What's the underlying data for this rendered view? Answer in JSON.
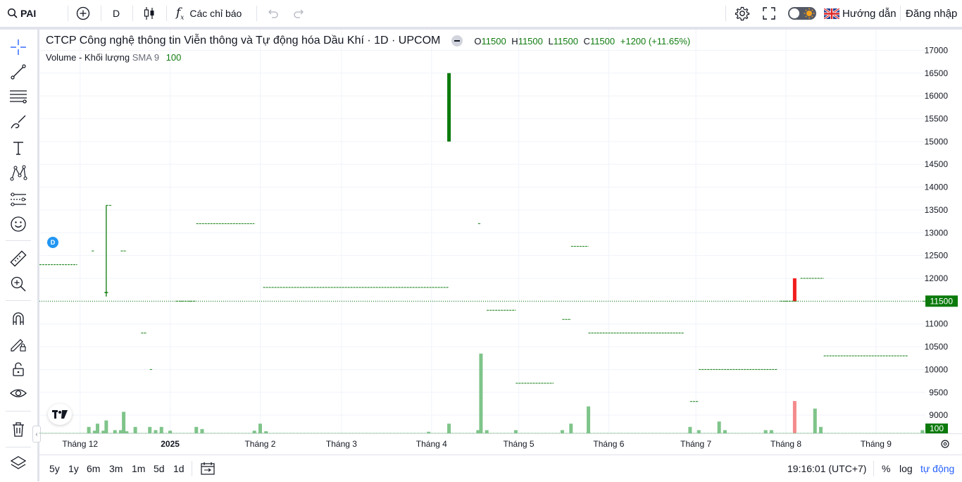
{
  "topbar": {
    "symbol": "PAI",
    "interval": "D",
    "indicators_label": "Các chỉ báo",
    "guide_label": "Hướng dẫn",
    "login_label": "Đăng nhập"
  },
  "legend": {
    "title": "CTCP Công nghệ thông tin Viễn thông và Tự động hóa Dầu Khí · 1D · UPCOM",
    "o_label": "O",
    "o_value": "11500",
    "h_label": "H",
    "h_value": "11500",
    "l_label": "L",
    "l_value": "11500",
    "c_label": "C",
    "c_value": "11500",
    "change": "+1200 (+11.65%)",
    "volume_label": "Volume - Khối lượng",
    "volume_sma_label": "SMA 9",
    "volume_value": "100"
  },
  "badge_label": "D",
  "bottombar": {
    "ranges": [
      "5y",
      "1y",
      "6m",
      "3m",
      "1m",
      "5d",
      "1d"
    ],
    "time": "19:16:01 (UTC+7)",
    "percent": "%",
    "log": "log",
    "auto": "tự động"
  },
  "colors": {
    "up": "#0b7a0b",
    "down": "#f21d1d",
    "volume_up": "#7fc48a",
    "volume_down": "#f48a8a",
    "grid": "#f0f3fa",
    "accent": "#2962ff"
  },
  "chart_data": {
    "type": "candlestick",
    "y_axis": {
      "ticks": [
        "17000",
        "16500",
        "16000",
        "15500",
        "15000",
        "14500",
        "14000",
        "13500",
        "13000",
        "12500",
        "12000",
        "11500",
        "11000",
        "10500",
        "10000",
        "9500",
        "9000"
      ],
      "ylim": [
        8600,
        17300
      ]
    },
    "x_axis": {
      "ticks": [
        "Tháng 12",
        "2025",
        "Tháng 2",
        "Tháng 3",
        "Tháng 4",
        "Tháng 5",
        "Tháng 6",
        "Tháng 7",
        "Tháng 8",
        "Tháng 9"
      ],
      "tick_days": [
        0,
        31,
        62,
        90,
        121,
        151,
        182,
        212,
        243,
        274
      ],
      "xlim": [
        -14,
        291
      ]
    },
    "last_price_label": "11500",
    "last_volume_label": "100",
    "segments": [
      {
        "d0": -14,
        "d1": -1,
        "price": 12300
      },
      {
        "d0": 4,
        "d1": 5,
        "price": 12600
      },
      {
        "d0": 9,
        "d1": 11,
        "price": 13600
      },
      {
        "d0": 14,
        "d1": 16,
        "price": 12600
      },
      {
        "d0": 21,
        "d1": 23,
        "price": 10800
      },
      {
        "d0": 24,
        "d1": 25,
        "price": 10000
      },
      {
        "d0": 33,
        "d1": 40,
        "price": 11500
      },
      {
        "d0": 40,
        "d1": 60,
        "price": 13200
      },
      {
        "d0": 63,
        "d1": 127,
        "price": 11800
      },
      {
        "d0": 137,
        "d1": 138,
        "price": 13200
      },
      {
        "d0": 140,
        "d1": 150,
        "price": 11300
      },
      {
        "d0": 150,
        "d1": 163,
        "price": 9700
      },
      {
        "d0": 166,
        "d1": 169,
        "price": 11100
      },
      {
        "d0": 169,
        "d1": 175,
        "price": 12700
      },
      {
        "d0": 175,
        "d1": 208,
        "price": 10800
      },
      {
        "d0": 210,
        "d1": 213,
        "price": 9300
      },
      {
        "d0": 213,
        "d1": 240,
        "price": 10000
      },
      {
        "d0": 241,
        "d1": 247,
        "price": 11500
      },
      {
        "d0": 248,
        "d1": 256,
        "price": 12000
      },
      {
        "d0": 256,
        "d1": 285,
        "price": 10300
      },
      {
        "d0": 290,
        "d1": 291,
        "price": 11500
      }
    ],
    "candles": [
      {
        "day": 9,
        "open": 11700,
        "high": 13600,
        "low": 11600,
        "close": 11700,
        "kind": "up"
      },
      {
        "day": 127,
        "open": 15000,
        "high": 16500,
        "low": 15000,
        "close": 16500,
        "kind": "up"
      },
      {
        "day": 246,
        "open": 12000,
        "high": 12000,
        "low": 11500,
        "close": 11500,
        "kind": "down"
      }
    ],
    "volume": {
      "ylim": [
        0,
        200000
      ],
      "bars": [
        {
          "day": 3,
          "v": 12000,
          "kind": "up"
        },
        {
          "day": 5,
          "v": 5000,
          "kind": "up"
        },
        {
          "day": 6,
          "v": 18000,
          "kind": "up"
        },
        {
          "day": 8,
          "v": 5000,
          "kind": "up"
        },
        {
          "day": 9,
          "v": 24000,
          "kind": "up"
        },
        {
          "day": 12,
          "v": 6000,
          "kind": "up"
        },
        {
          "day": 14,
          "v": 6000,
          "kind": "up"
        },
        {
          "day": 15,
          "v": 40000,
          "kind": "up"
        },
        {
          "day": 16,
          "v": 4000,
          "kind": "up"
        },
        {
          "day": 19,
          "v": 12000,
          "kind": "up"
        },
        {
          "day": 24,
          "v": 12000,
          "kind": "up"
        },
        {
          "day": 26,
          "v": 6000,
          "kind": "up"
        },
        {
          "day": 28,
          "v": 12000,
          "kind": "up"
        },
        {
          "day": 31,
          "v": 5000,
          "kind": "up"
        },
        {
          "day": 40,
          "v": 12000,
          "kind": "up"
        },
        {
          "day": 42,
          "v": 8000,
          "kind": "up"
        },
        {
          "day": 60,
          "v": 5000,
          "kind": "up"
        },
        {
          "day": 62,
          "v": 18000,
          "kind": "up"
        },
        {
          "day": 64,
          "v": 4000,
          "kind": "up"
        },
        {
          "day": 120,
          "v": 3000,
          "kind": "up"
        },
        {
          "day": 127,
          "v": 18000,
          "kind": "up"
        },
        {
          "day": 137,
          "v": 6000,
          "kind": "up"
        },
        {
          "day": 138,
          "v": 148000,
          "kind": "up"
        },
        {
          "day": 140,
          "v": 6000,
          "kind": "up"
        },
        {
          "day": 150,
          "v": 6000,
          "kind": "up"
        },
        {
          "day": 166,
          "v": 6000,
          "kind": "up"
        },
        {
          "day": 169,
          "v": 18000,
          "kind": "up"
        },
        {
          "day": 175,
          "v": 50000,
          "kind": "up"
        },
        {
          "day": 210,
          "v": 12000,
          "kind": "up"
        },
        {
          "day": 213,
          "v": 6000,
          "kind": "up"
        },
        {
          "day": 220,
          "v": 22000,
          "kind": "up"
        },
        {
          "day": 222,
          "v": 6000,
          "kind": "up"
        },
        {
          "day": 236,
          "v": 6000,
          "kind": "up"
        },
        {
          "day": 238,
          "v": 6000,
          "kind": "up"
        },
        {
          "day": 246,
          "v": 60000,
          "kind": "down"
        },
        {
          "day": 253,
          "v": 46000,
          "kind": "up"
        },
        {
          "day": 255,
          "v": 12000,
          "kind": "up"
        },
        {
          "day": 290,
          "v": 6000,
          "kind": "up"
        }
      ]
    }
  }
}
